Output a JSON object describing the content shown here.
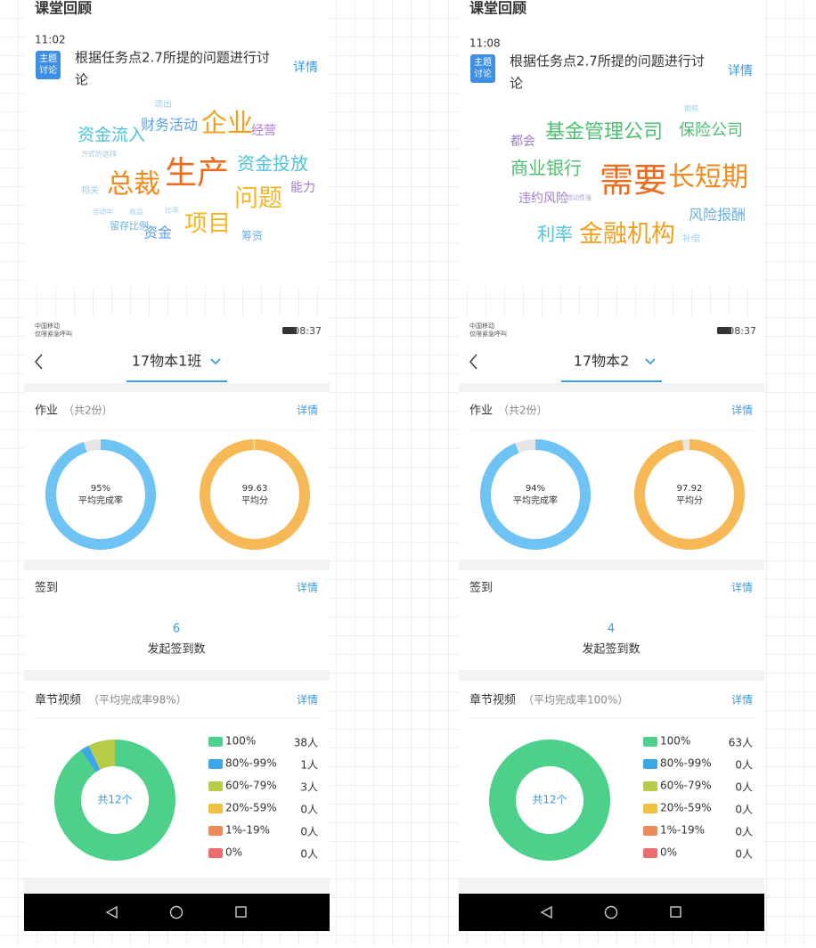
{
  "panels": [
    {
      "review": {
        "title": "课堂回顾",
        "time": "11:02",
        "tag": [
          "主题",
          "讨论"
        ],
        "text": [
          "根据任务点2.7所提的问题进行讨",
          "论"
        ],
        "detail": "详情",
        "words": [
          {
            "text": "流出",
            "color": "#9ed0ec"
          },
          {
            "text": "资金流入",
            "color": "#4cc4d8"
          },
          {
            "text": "财务活动",
            "color": "#5b9ee6"
          },
          {
            "text": "企业",
            "color": "#f0a020"
          },
          {
            "text": "经营",
            "color": "#b07ce0"
          },
          {
            "text": "方式的选择",
            "color": "#a8c8e0"
          },
          {
            "text": "总裁",
            "color": "#f08a1c"
          },
          {
            "text": "生产",
            "color": "#f06a1c"
          },
          {
            "text": "资金投放",
            "color": "#4cc4d8"
          },
          {
            "text": "问题",
            "color": "#f5b520"
          },
          {
            "text": "能力",
            "color": "#a07cd0"
          },
          {
            "text": "相关",
            "color": "#9ed0ec"
          },
          {
            "text": "活动中",
            "color": "#9ed0ec"
          },
          {
            "text": "收益",
            "color": "#9ed0ec"
          },
          {
            "text": "比率",
            "color": "#9ed0ec"
          },
          {
            "text": "留存比例",
            "color": "#6fb0e0"
          },
          {
            "text": "资金",
            "color": "#5b9ee6"
          },
          {
            "text": "项目",
            "color": "#f5b520"
          },
          {
            "text": "筹资",
            "color": "#6fb0e0"
          }
        ]
      },
      "status": {
        "carrier": [
          "中国移动",
          "仅限紧急呼叫"
        ],
        "clock": "08:37"
      },
      "class_name": "17物本1班",
      "homework": {
        "title": "作业",
        "count": "（共2份）",
        "detail": "详情",
        "completion": {
          "value": 95,
          "label": "95%",
          "caption": "平均完成率",
          "scale": [
            0,
            100
          ]
        },
        "score": {
          "value": 99.63,
          "caption": "平均分",
          "scale": [
            0,
            100
          ]
        }
      },
      "signin": {
        "title": "签到",
        "detail": "详情",
        "count": 6,
        "caption": "发起签到数"
      },
      "video": {
        "title": "章节视频",
        "subtitle": "（平均完成率98%）",
        "detail": "详情",
        "center": "共12个",
        "legend": [
          {
            "label": "100%",
            "color": "#4cd08a",
            "count": 38,
            "count_label": "38人"
          },
          {
            "label": "80%-99%",
            "color": "#3aa8e8",
            "count": 1,
            "count_label": "1人"
          },
          {
            "label": "60%-79%",
            "color": "#b9cc4a",
            "count": 3,
            "count_label": "3人"
          },
          {
            "label": "20%-59%",
            "color": "#f0c040",
            "count": 0,
            "count_label": "0人"
          },
          {
            "label": "1%-19%",
            "color": "#ec8a5c",
            "count": 0,
            "count_label": "0人"
          },
          {
            "label": "0%",
            "color": "#ee6b6b",
            "count": 0,
            "count_label": "0人"
          }
        ]
      }
    },
    {
      "review": {
        "title": "课堂回顾",
        "time": "11:08",
        "tag": [
          "主题",
          "讨论"
        ],
        "text": [
          "根据任务点2.7所提的问题进行讨",
          "论"
        ],
        "detail": "详情",
        "words": [
          {
            "text": "期限",
            "color": "#9ed0ec"
          },
          {
            "text": "基金管理公司",
            "color": "#4cc070"
          },
          {
            "text": "保险公司",
            "color": "#4cc070"
          },
          {
            "text": "都会",
            "color": "#a07cd0"
          },
          {
            "text": "商业银行",
            "color": "#4cc070"
          },
          {
            "text": "需要",
            "color": "#f06a1c"
          },
          {
            "text": "长短期",
            "color": "#f08a1c"
          },
          {
            "text": "违约风险",
            "color": "#a07cd0"
          },
          {
            "text": "流动性强",
            "color": "#b0a0e0"
          },
          {
            "text": "风险报酬",
            "color": "#6fb0e0"
          },
          {
            "text": "利率",
            "color": "#4cc4d8"
          },
          {
            "text": "金融机构",
            "color": "#f0a020"
          },
          {
            "text": "补偿",
            "color": "#9ed0ec"
          }
        ]
      },
      "status": {
        "carrier": [
          "中国移动",
          "仅限紧急呼叫"
        ],
        "clock": "08:37"
      },
      "class_name": "17物本2",
      "homework": {
        "title": "作业",
        "count": "（共2份）",
        "detail": "详情",
        "completion": {
          "value": 94,
          "label": "94%",
          "caption": "平均完成率",
          "scale": [
            0,
            100
          ]
        },
        "score": {
          "value": 97.92,
          "caption": "平均分",
          "scale": [
            0,
            100
          ]
        }
      },
      "signin": {
        "title": "签到",
        "detail": "详情",
        "count": 4,
        "caption": "发起签到数"
      },
      "video": {
        "title": "章节视频",
        "subtitle": "（平均完成率100%）",
        "detail": "详情",
        "center": "共12个",
        "legend": [
          {
            "label": "100%",
            "color": "#4cd08a",
            "count": 63,
            "count_label": "63人"
          },
          {
            "label": "80%-99%",
            "color": "#3aa8e8",
            "count": 0,
            "count_label": "0人"
          },
          {
            "label": "60%-79%",
            "color": "#b9cc4a",
            "count": 0,
            "count_label": "0人"
          },
          {
            "label": "20%-59%",
            "color": "#f0c040",
            "count": 0,
            "count_label": "0人"
          },
          {
            "label": "1%-19%",
            "color": "#ec8a5c",
            "count": 0,
            "count_label": "0人"
          },
          {
            "label": "0%",
            "color": "#ee6b6b",
            "count": 0,
            "count_label": "0人"
          }
        ]
      }
    }
  ]
}
